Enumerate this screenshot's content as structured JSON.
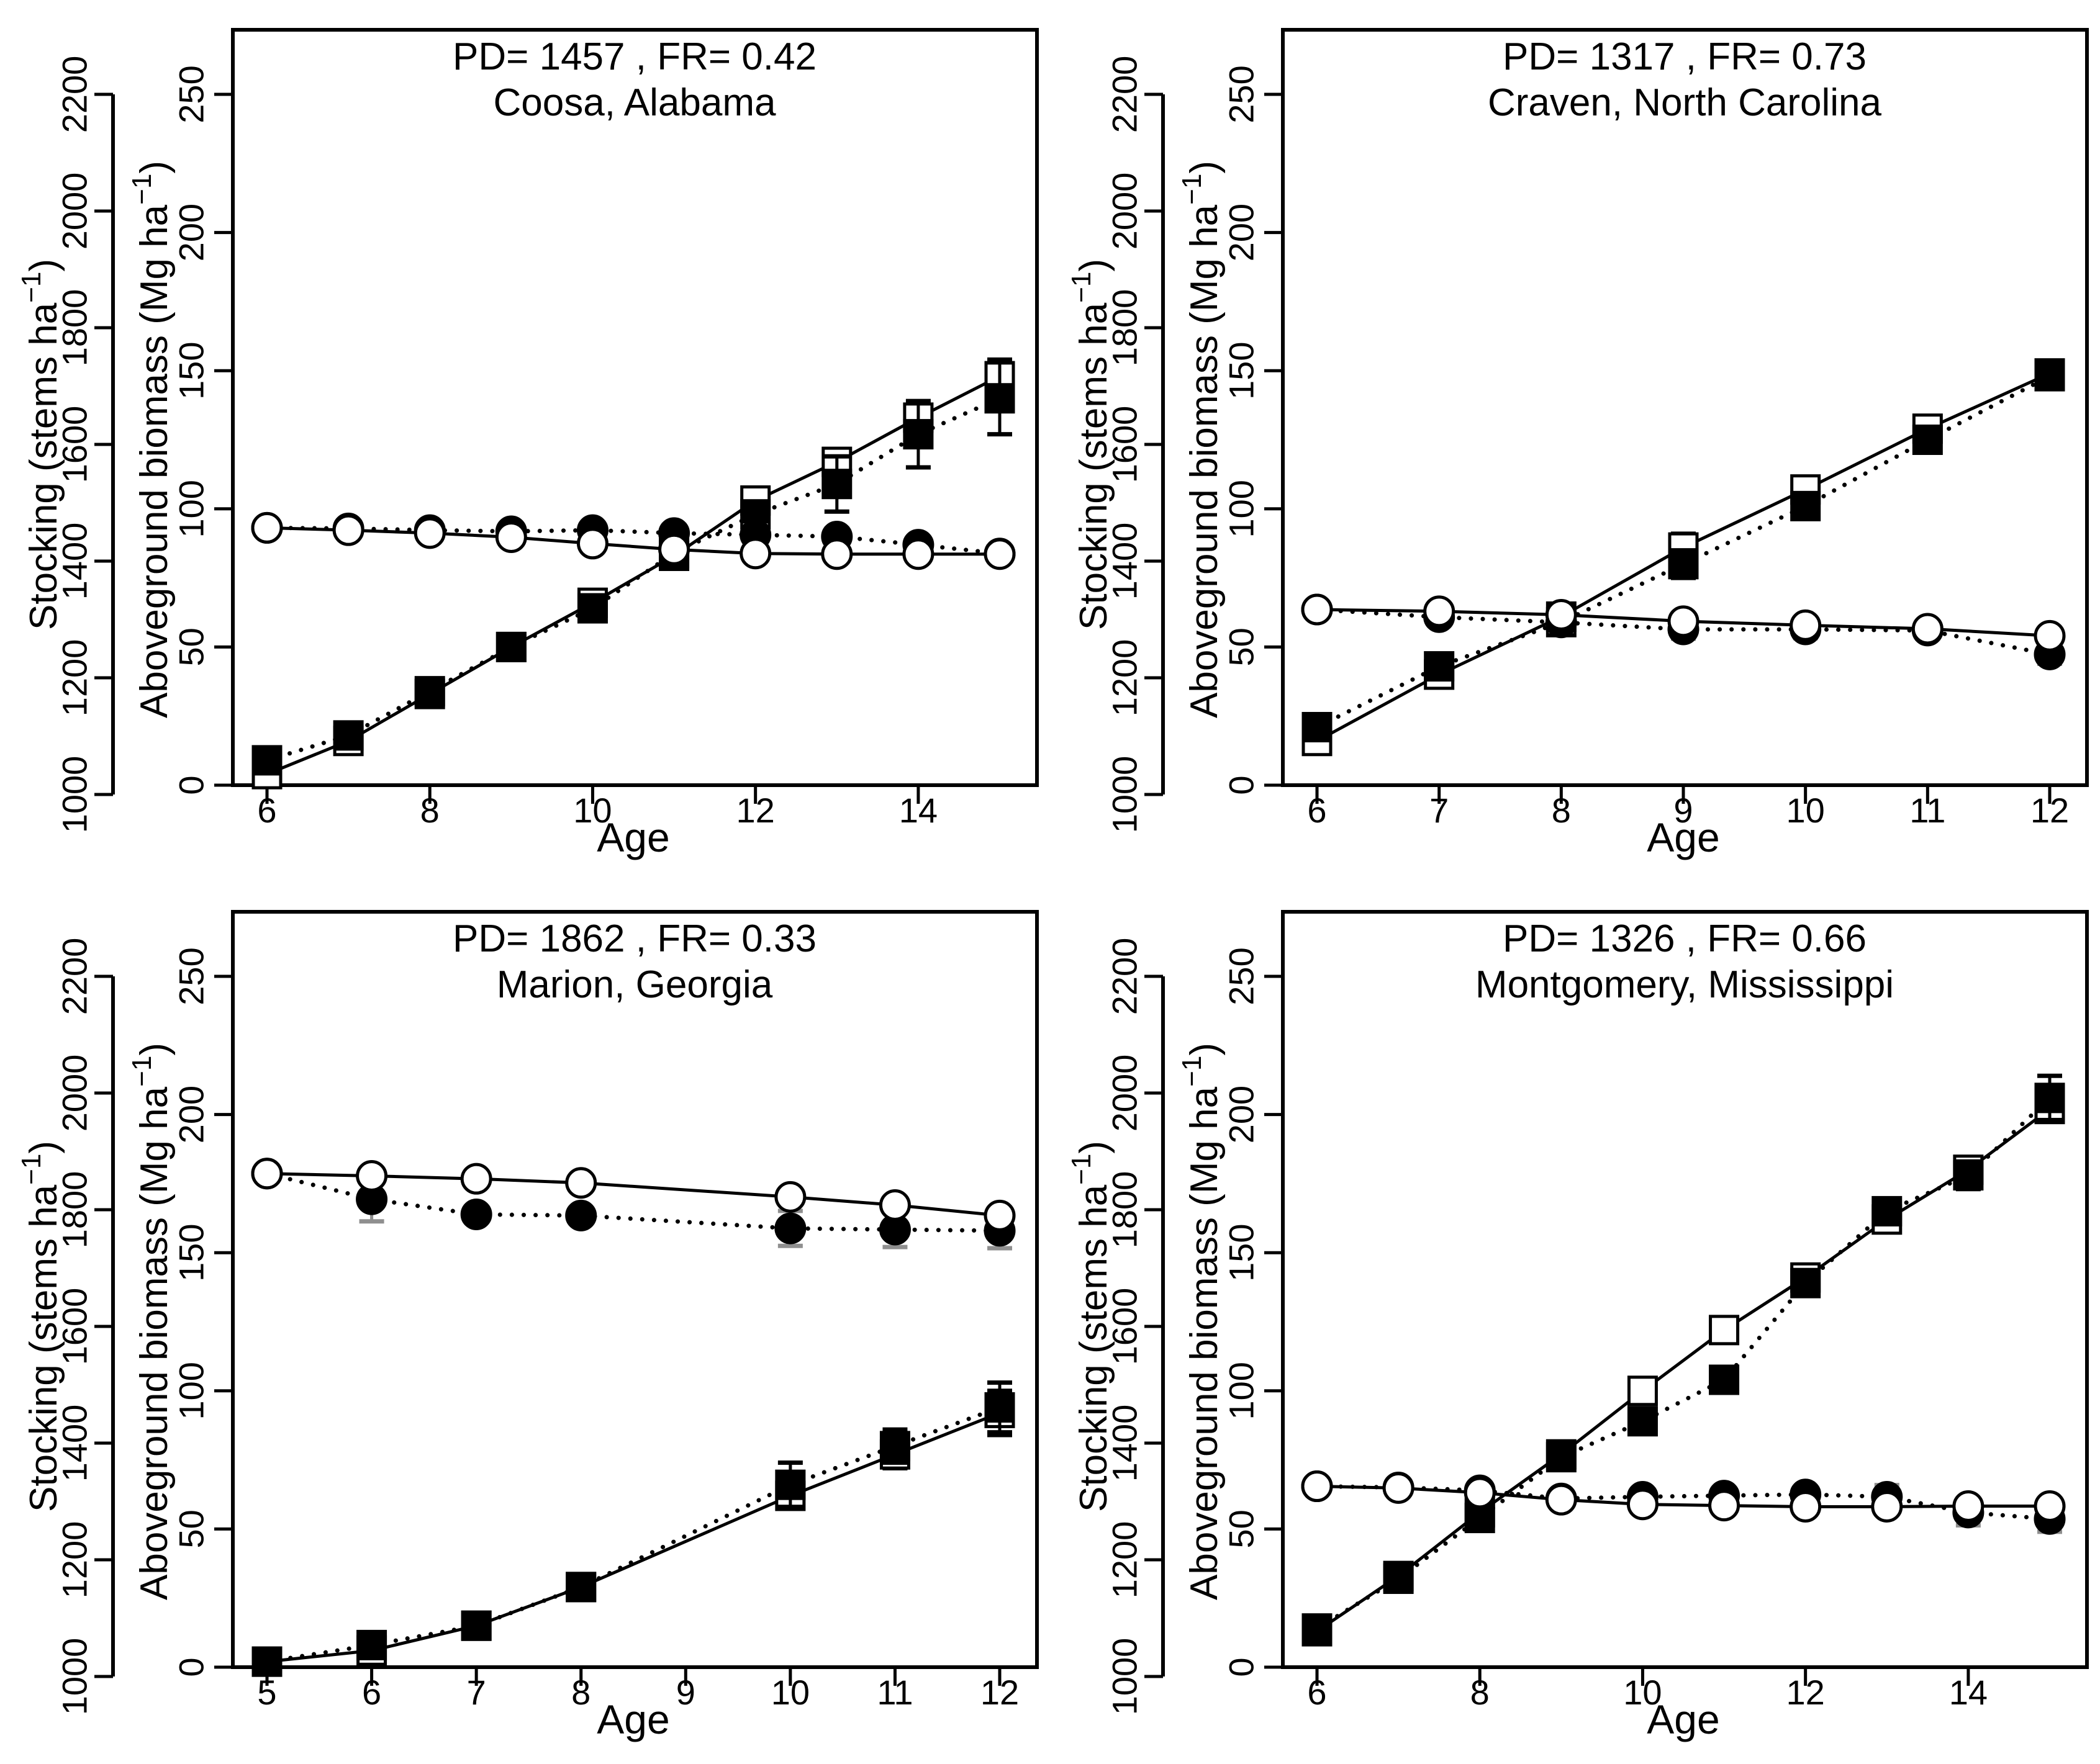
{
  "figure": {
    "background": "#ffffff",
    "ink": "#000000",
    "error_bar_gray": "#8f8f8f",
    "superscript": "−1",
    "close_paren": ")"
  },
  "chart_data": [
    {
      "type": "line",
      "title": "PD= 1457 , FR= 0.42",
      "subtitle": "Coosa, Alabama",
      "pd": 1457,
      "fr": 0.42,
      "xlabel": "Age",
      "ylabel_stocking_main": "Stocking (stems ha",
      "ylabel_biomass_main": "Aboveground biomass (Mg ha",
      "x_range": [
        6,
        15
      ],
      "x_ticks": [
        6,
        8,
        10,
        12,
        14
      ],
      "stocking_axis": {
        "range": [
          1000,
          2200
        ],
        "ticks": [
          1000,
          1200,
          1400,
          1600,
          1800,
          2000,
          2200
        ]
      },
      "biomass_axis": {
        "range": [
          0,
          250
        ],
        "ticks": [
          0,
          50,
          100,
          150,
          200,
          250
        ]
      },
      "series": [
        {
          "name": "biomass-open-square-solid",
          "axis": "biomass",
          "marker": "open-square",
          "line": "solid",
          "x": [
            6,
            7,
            8,
            9,
            10,
            11,
            12,
            13,
            14,
            15
          ],
          "y": [
            4,
            16,
            33,
            50,
            66,
            83,
            103,
            117,
            133,
            148
          ],
          "err": [
            0,
            0,
            0,
            0,
            0,
            0,
            0,
            0,
            0,
            6
          ]
        },
        {
          "name": "biomass-filled-square-dotted",
          "axis": "biomass",
          "marker": "filled-square",
          "line": "dotted",
          "x": [
            6,
            7,
            8,
            9,
            10,
            11,
            12,
            13,
            14,
            15
          ],
          "y": [
            9,
            18,
            34,
            50,
            64,
            84,
            98,
            109,
            127,
            140
          ],
          "err": [
            0,
            0,
            0,
            0,
            0,
            0,
            4,
            10,
            12,
            13
          ]
        },
        {
          "name": "stocking-open-circle-solid",
          "axis": "stocking",
          "marker": "open-circle",
          "line": "solid",
          "x": [
            6,
            7,
            8,
            9,
            10,
            11,
            12,
            13,
            14,
            15
          ],
          "y": [
            1457,
            1453,
            1448,
            1441,
            1430,
            1420,
            1413,
            1412,
            1412,
            1412
          ],
          "err": [
            0,
            0,
            0,
            0,
            0,
            0,
            0,
            0,
            0,
            0
          ]
        },
        {
          "name": "stocking-filled-circle-dotted",
          "axis": "stocking",
          "marker": "filled-circle",
          "line": "dotted",
          "x": [
            6,
            7,
            8,
            9,
            10,
            11,
            12,
            13,
            14,
            15
          ],
          "y": [
            1457,
            1456,
            1453,
            1451,
            1453,
            1448,
            1445,
            1442,
            1428,
            1413
          ],
          "err": [
            0,
            0,
            0,
            0,
            0,
            14,
            16,
            14,
            12,
            0
          ]
        }
      ]
    },
    {
      "type": "line",
      "title": "PD= 1317 , FR= 0.73",
      "subtitle": "Craven, North Carolina",
      "pd": 1317,
      "fr": 0.73,
      "xlabel": "Age",
      "ylabel_stocking_main": "Stocking (stems ha",
      "ylabel_biomass_main": "Aboveground biomass (Mg ha",
      "x_range": [
        6,
        12
      ],
      "x_ticks": [
        6,
        7,
        8,
        9,
        10,
        11,
        12
      ],
      "stocking_axis": {
        "range": [
          1000,
          2200
        ],
        "ticks": [
          1000,
          1200,
          1400,
          1600,
          1800,
          2000,
          2200
        ]
      },
      "biomass_axis": {
        "range": [
          0,
          250
        ],
        "ticks": [
          0,
          50,
          100,
          150,
          200,
          250
        ]
      },
      "series": [
        {
          "name": "biomass-open-square-solid",
          "axis": "biomass",
          "marker": "open-square",
          "line": "solid",
          "x": [
            6,
            7,
            8,
            9,
            10,
            11,
            12
          ],
          "y": [
            16,
            40,
            61,
            86,
            107,
            129,
            149
          ],
          "err": [
            0,
            0,
            0,
            5,
            0,
            0,
            0
          ]
        },
        {
          "name": "biomass-filled-square-dotted",
          "axis": "biomass",
          "marker": "filled-square",
          "line": "dotted",
          "x": [
            6,
            7,
            8,
            9,
            10,
            11,
            12
          ],
          "y": [
            21,
            43,
            59,
            80,
            101,
            125,
            148
          ],
          "err": [
            0,
            0,
            4,
            5,
            4,
            0,
            0
          ]
        },
        {
          "name": "stocking-open-circle-solid",
          "axis": "stocking",
          "marker": "open-circle",
          "line": "solid",
          "x": [
            6,
            7,
            8,
            9,
            10,
            11,
            12
          ],
          "y": [
            1317,
            1314,
            1308,
            1297,
            1290,
            1284,
            1272
          ],
          "err": [
            0,
            0,
            0,
            0,
            0,
            0,
            0
          ]
        },
        {
          "name": "stocking-filled-circle-dotted",
          "axis": "stocking",
          "marker": "filled-circle",
          "line": "dotted",
          "x": [
            6,
            7,
            8,
            9,
            10,
            11,
            12
          ],
          "y": [
            1317,
            1304,
            1295,
            1283,
            1283,
            1281,
            1240
          ],
          "err": [
            0,
            13,
            15,
            16,
            15,
            14,
            16
          ]
        }
      ]
    },
    {
      "type": "line",
      "title": "PD= 1862 , FR= 0.33",
      "subtitle": "Marion, Georgia",
      "pd": 1862,
      "fr": 0.33,
      "xlabel": "Age",
      "ylabel_stocking_main": "Stocking (stems ha",
      "ylabel_biomass_main": "Aboveground biomass (Mg ha",
      "x_range": [
        5,
        12
      ],
      "x_ticks": [
        5,
        6,
        7,
        8,
        9,
        10,
        11,
        12
      ],
      "stocking_axis": {
        "range": [
          1000,
          2200
        ],
        "ticks": [
          1000,
          1200,
          1400,
          1600,
          1800,
          2000,
          2200
        ]
      },
      "biomass_axis": {
        "range": [
          0,
          250
        ],
        "ticks": [
          0,
          50,
          100,
          150,
          200,
          250
        ]
      },
      "series": [
        {
          "name": "biomass-open-square-solid",
          "axis": "biomass",
          "marker": "open-square",
          "line": "solid",
          "x": [
            5,
            6,
            7,
            8,
            10,
            11,
            12
          ],
          "y": [
            2,
            6,
            15,
            29,
            62,
            77,
            92
          ],
          "err": [
            0,
            0,
            0,
            0,
            0,
            5,
            8
          ]
        },
        {
          "name": "biomass-filled-square-dotted",
          "axis": "biomass",
          "marker": "filled-square",
          "line": "dotted",
          "x": [
            5,
            6,
            7,
            8,
            10,
            11,
            12
          ],
          "y": [
            2,
            8,
            15,
            29,
            66,
            80,
            94
          ],
          "err": [
            0,
            0,
            0,
            0,
            8,
            6,
            9
          ]
        },
        {
          "name": "stocking-open-circle-solid",
          "axis": "stocking",
          "marker": "open-circle",
          "line": "solid",
          "x": [
            5,
            6,
            7,
            8,
            10,
            11,
            12
          ],
          "y": [
            1862,
            1858,
            1853,
            1846,
            1822,
            1808,
            1790
          ],
          "err": [
            0,
            0,
            0,
            0,
            0,
            0,
            0
          ]
        },
        {
          "name": "stocking-filled-circle-dotted",
          "axis": "stocking",
          "marker": "filled-circle",
          "line": "dotted",
          "x": [
            5,
            6,
            7,
            8,
            10,
            11,
            12
          ],
          "y": [
            1862,
            1818,
            1792,
            1790,
            1768,
            1766,
            1764
          ],
          "err": [
            0,
            38,
            0,
            0,
            30,
            30,
            30
          ]
        }
      ]
    },
    {
      "type": "line",
      "title": "PD= 1326 , FR= 0.66",
      "subtitle": "Montgomery, Mississippi",
      "pd": 1326,
      "fr": 0.66,
      "xlabel": "Age",
      "ylabel_stocking_main": "Stocking (stems ha",
      "ylabel_biomass_main": "Aboveground biomass (Mg ha",
      "x_range": [
        6,
        15
      ],
      "x_ticks": [
        6,
        8,
        10,
        12,
        14
      ],
      "stocking_axis": {
        "range": [
          1000,
          2200
        ],
        "ticks": [
          1000,
          1200,
          1400,
          1600,
          1800,
          2000,
          2200
        ]
      },
      "biomass_axis": {
        "range": [
          0,
          250
        ],
        "ticks": [
          0,
          50,
          100,
          150,
          200,
          250
        ]
      },
      "series": [
        {
          "name": "biomass-open-square-solid",
          "axis": "biomass",
          "marker": "open-square",
          "line": "solid",
          "x": [
            6,
            7,
            8,
            9,
            10,
            11,
            12,
            13,
            14,
            15
          ],
          "y": [
            13,
            33,
            56,
            77,
            100,
            122,
            141,
            162,
            180,
            202
          ],
          "err": [
            0,
            0,
            0,
            0,
            0,
            0,
            0,
            0,
            0,
            0
          ]
        },
        {
          "name": "biomass-filled-square-dotted",
          "axis": "biomass",
          "marker": "filled-square",
          "line": "dotted",
          "x": [
            6,
            7,
            8,
            9,
            10,
            11,
            12,
            13,
            14,
            15
          ],
          "y": [
            14,
            32,
            54,
            76,
            89,
            104,
            139,
            165,
            178,
            206
          ],
          "err": [
            0,
            0,
            0,
            0,
            0,
            0,
            0,
            0,
            5,
            8
          ]
        },
        {
          "name": "stocking-open-circle-solid",
          "axis": "stocking",
          "marker": "open-circle",
          "line": "solid",
          "x": [
            6,
            7,
            8,
            9,
            10,
            11,
            12,
            13,
            14,
            15
          ],
          "y": [
            1326,
            1323,
            1315,
            1303,
            1295,
            1293,
            1291,
            1291,
            1292,
            1292
          ],
          "err": [
            0,
            0,
            0,
            0,
            0,
            0,
            0,
            0,
            0,
            0
          ]
        },
        {
          "name": "stocking-filled-circle-dotted",
          "axis": "stocking",
          "marker": "filled-circle",
          "line": "dotted",
          "x": [
            6,
            7,
            8,
            9,
            10,
            11,
            12,
            13,
            14,
            15
          ],
          "y": [
            1326,
            1324,
            1319,
            1305,
            1308,
            1310,
            1312,
            1308,
            1281,
            1270
          ],
          "err": [
            0,
            0,
            0,
            12,
            0,
            0,
            0,
            20,
            22,
            22
          ]
        }
      ]
    }
  ]
}
